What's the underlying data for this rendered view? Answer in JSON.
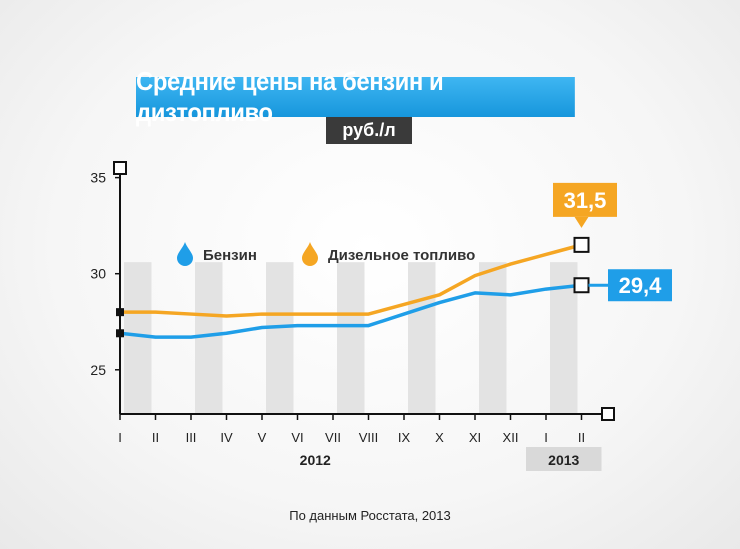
{
  "chart_data": {
    "type": "line",
    "title": "Средние цены на бензин и дизтопливо",
    "unit": "руб./л",
    "categories": [
      "I",
      "II",
      "III",
      "IV",
      "V",
      "VI",
      "VII",
      "VIII",
      "IX",
      "X",
      "XI",
      "XII",
      "I",
      "II"
    ],
    "year_labels": [
      {
        "label": "2012",
        "from": 0,
        "to": 11
      },
      {
        "label": "2013",
        "from": 12,
        "to": 13
      }
    ],
    "series": [
      {
        "name": "Бензин",
        "color": "#1f9ee8",
        "values": [
          26.9,
          26.7,
          26.7,
          26.9,
          27.2,
          27.3,
          27.3,
          27.3,
          27.9,
          28.5,
          29.0,
          28.9,
          29.2,
          29.4
        ],
        "end_label": "29,4"
      },
      {
        "name": "Дизельное топливо",
        "color": "#f5a623",
        "values": [
          28.0,
          28.0,
          27.9,
          27.8,
          27.9,
          27.9,
          27.9,
          27.9,
          28.4,
          28.9,
          29.9,
          30.5,
          31.0,
          31.5
        ],
        "end_label": "31,5"
      }
    ],
    "yticks": [
      25,
      30,
      35
    ],
    "ylim": [
      22.7,
      35.5
    ],
    "grid": false,
    "legend": "top-left",
    "source": "По данным Росстата, 2013"
  }
}
